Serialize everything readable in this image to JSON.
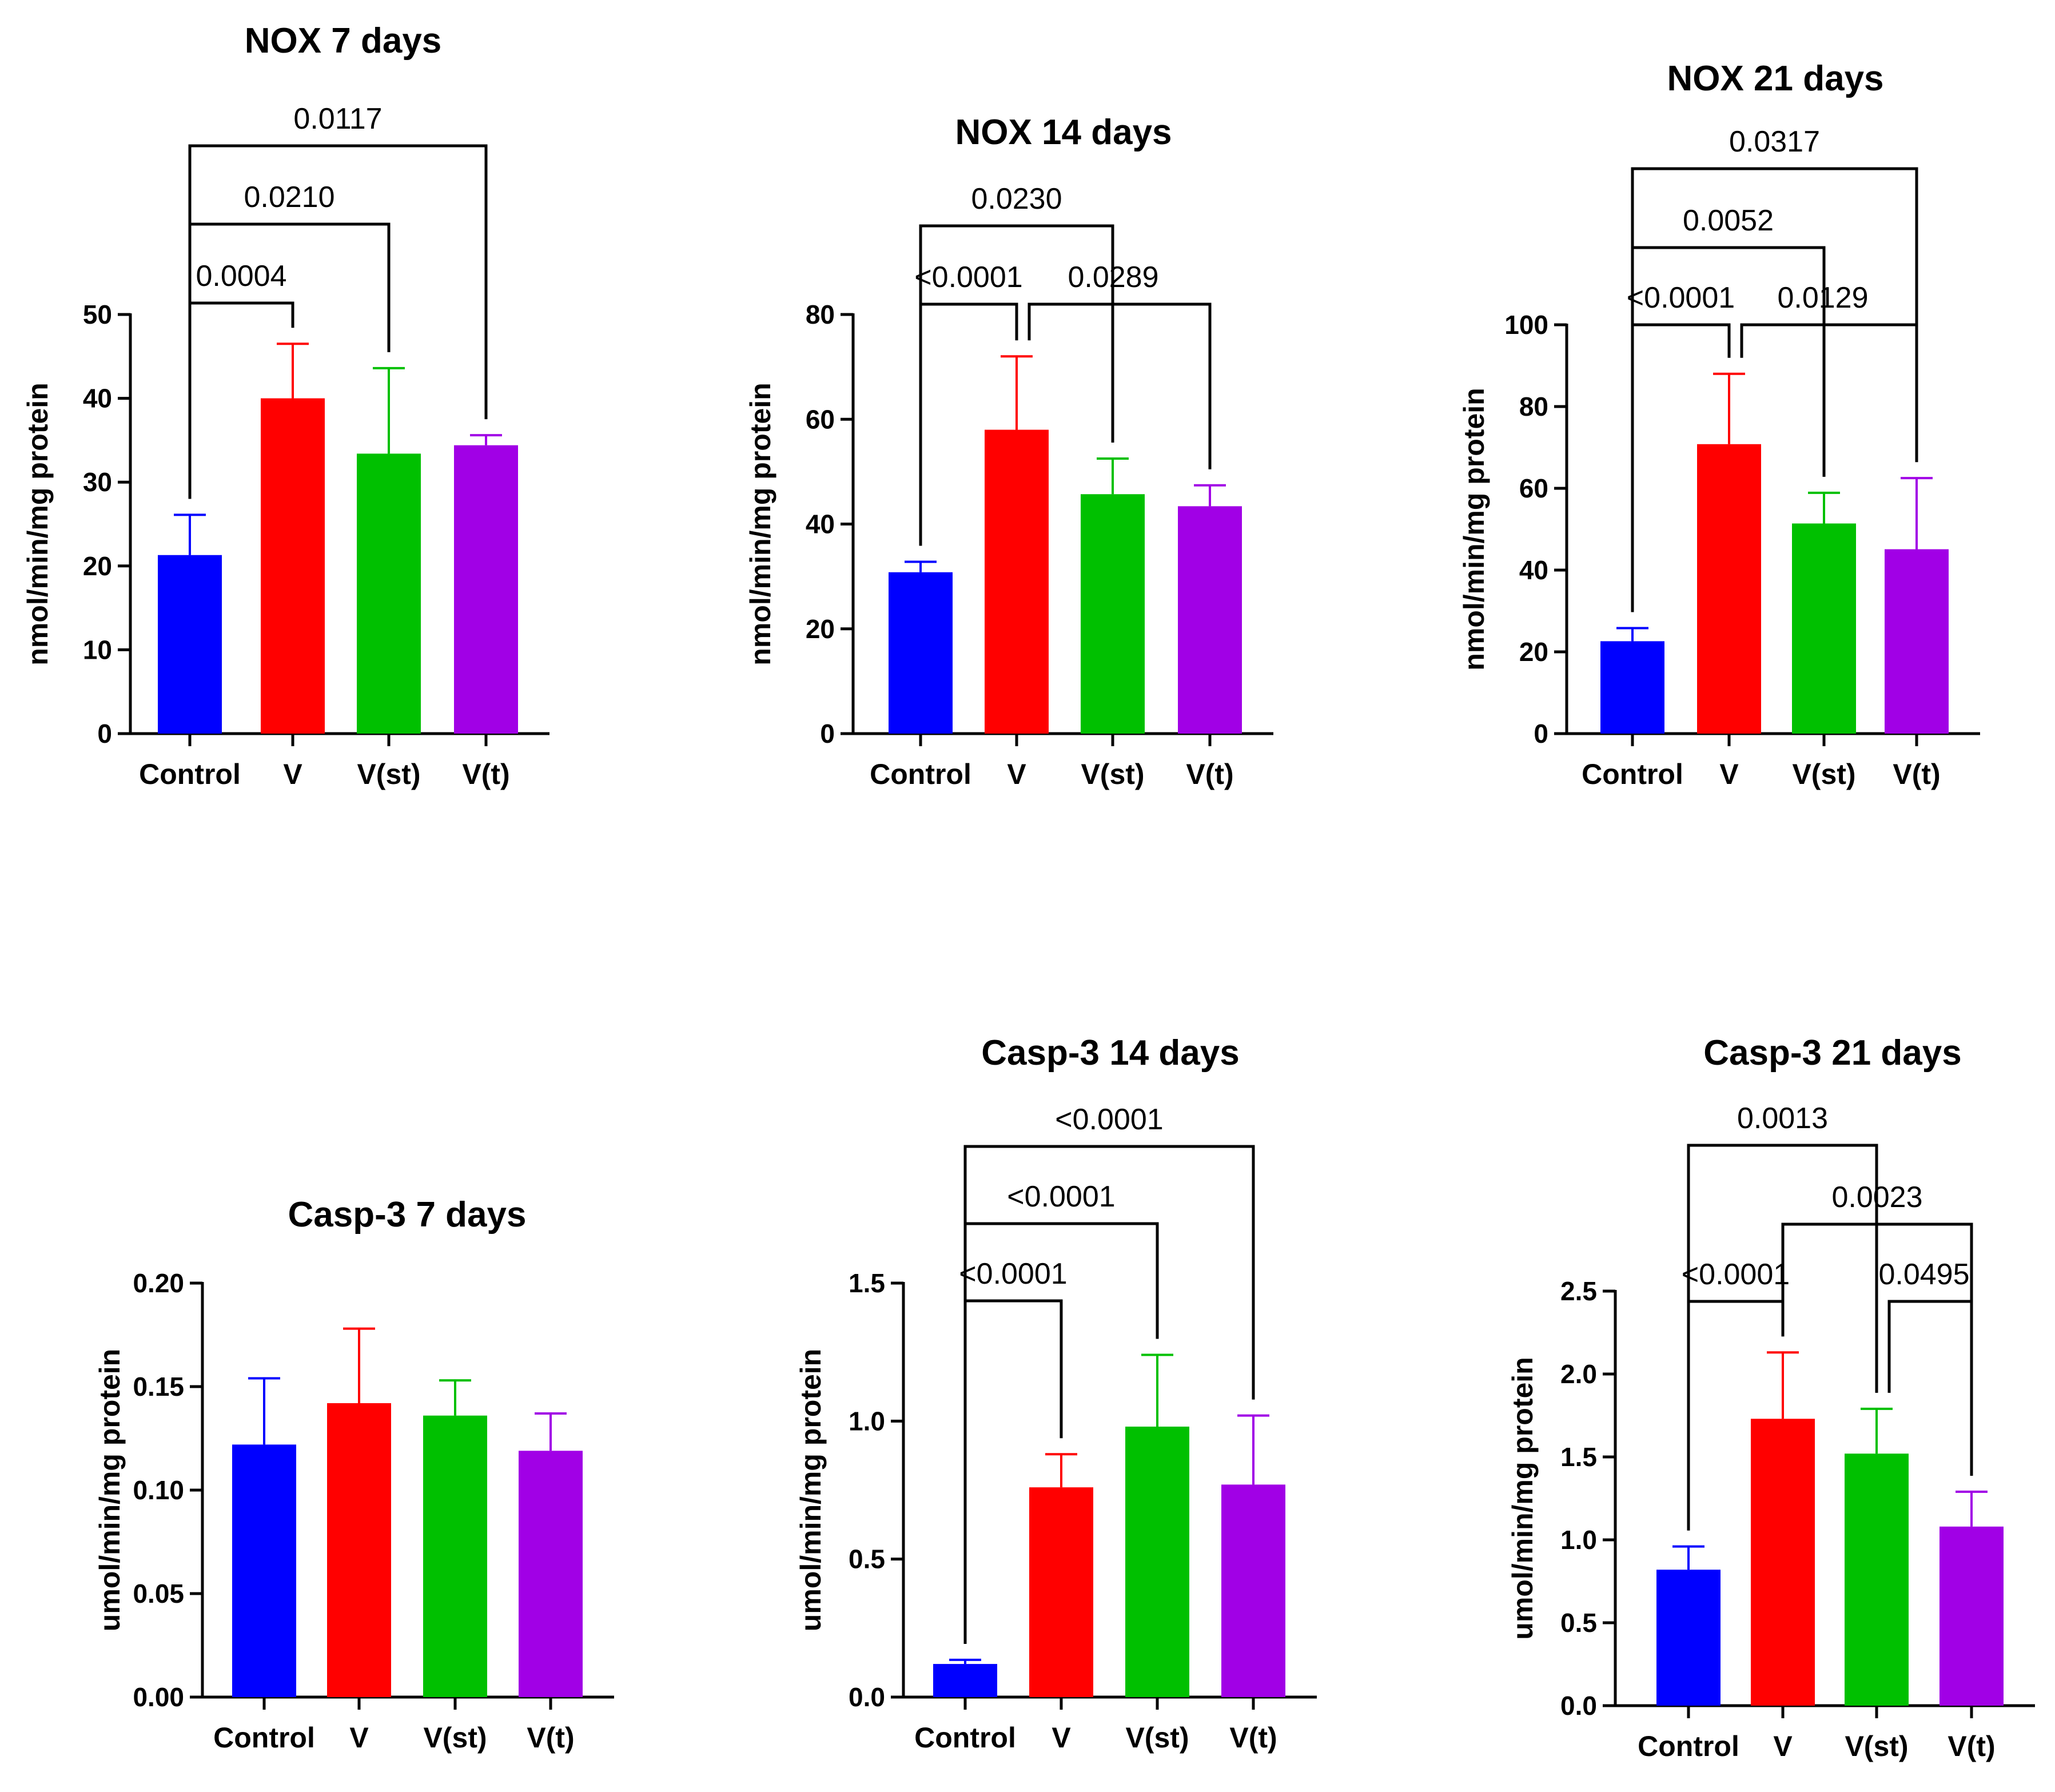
{
  "chart_data": [
    {
      "type": "bar",
      "title": "NOX 7 days",
      "ylabel": "nmol/min/mg protein",
      "categories": [
        "Control",
        "V",
        "V(st)",
        "V(t)"
      ],
      "values": [
        21.3,
        40.0,
        33.4,
        34.4
      ],
      "errors": [
        4.8,
        6.5,
        10.2,
        1.2
      ],
      "ylim": [
        0,
        50
      ],
      "yticks": [
        "0",
        "10",
        "20",
        "30",
        "40",
        "50"
      ],
      "comparisons": [
        {
          "from": "Control",
          "to": "V",
          "label": "0.0004"
        },
        {
          "from": "Control",
          "to": "V(st)",
          "label": "0.0210"
        },
        {
          "from": "Control",
          "to": "V(t)",
          "label": "0.0117"
        }
      ]
    },
    {
      "type": "bar",
      "title": "NOX 14 days",
      "ylabel": "nmol/min/mg protein",
      "categories": [
        "Control",
        "V",
        "V(st)",
        "V(t)"
      ],
      "values": [
        30.8,
        58.0,
        45.7,
        43.4
      ],
      "errors": [
        2.0,
        14.0,
        6.8,
        4.0
      ],
      "ylim": [
        0,
        80
      ],
      "yticks": [
        "0",
        "20",
        "40",
        "60",
        "80"
      ],
      "comparisons": [
        {
          "from": "Control",
          "to": "V",
          "label": "<0.0001"
        },
        {
          "from": "V",
          "to": "V(t)",
          "label": "0.0289"
        },
        {
          "from": "Control",
          "to": "V(st)",
          "label": "0.0230"
        }
      ]
    },
    {
      "type": "bar",
      "title": "NOX 21 days",
      "ylabel": "nmol/min/mg protein",
      "categories": [
        "Control",
        "V",
        "V(st)",
        "V(t)"
      ],
      "values": [
        22.6,
        70.8,
        51.4,
        45.1
      ],
      "errors": [
        3.2,
        17.2,
        7.5,
        17.4
      ],
      "ylim": [
        0,
        100
      ],
      "yticks": [
        "0",
        "20",
        "40",
        "60",
        "80",
        "100"
      ],
      "comparisons": [
        {
          "from": "Control",
          "to": "V",
          "label": "<0.0001"
        },
        {
          "from": "V",
          "to": "V(t)",
          "label": "0.0129"
        },
        {
          "from": "Control",
          "to": "V(st)",
          "label": "0.0052"
        },
        {
          "from": "Control",
          "to": "V(t)",
          "label": "0.0317"
        }
      ]
    },
    {
      "type": "bar",
      "title": "Casp-3 7 days",
      "ylabel": "umol/min/mg protein",
      "categories": [
        "Control",
        "V",
        "V(st)",
        "V(t)"
      ],
      "values": [
        0.122,
        0.142,
        0.136,
        0.119
      ],
      "errors": [
        0.032,
        0.036,
        0.017,
        0.018
      ],
      "ylim": [
        0,
        0.2
      ],
      "yticks": [
        "0.00",
        "0.05",
        "0.10",
        "0.15",
        "0.20"
      ],
      "comparisons": []
    },
    {
      "type": "bar",
      "title": "Casp-3 14 days",
      "ylabel": "umol/min/mg protein",
      "categories": [
        "Control",
        "V",
        "V(st)",
        "V(t)"
      ],
      "values": [
        0.12,
        0.76,
        0.98,
        0.77
      ],
      "errors": [
        0.015,
        0.12,
        0.26,
        0.25
      ],
      "ylim": [
        0,
        1.5
      ],
      "yticks": [
        "0.0",
        "0.5",
        "1.0",
        "1.5"
      ],
      "comparisons": [
        {
          "from": "Control",
          "to": "V",
          "label": "<0.0001"
        },
        {
          "from": "Control",
          "to": "V(st)",
          "label": "<0.0001"
        },
        {
          "from": "Control",
          "to": "V(t)",
          "label": "<0.0001"
        }
      ]
    },
    {
      "type": "bar",
      "title": "Casp-3 21 days",
      "ylabel": "umol/min/mg protein",
      "categories": [
        "Control",
        "V",
        "V(st)",
        "V(t)"
      ],
      "values": [
        0.82,
        1.73,
        1.52,
        1.08
      ],
      "errors": [
        0.14,
        0.4,
        0.27,
        0.21
      ],
      "ylim": [
        0,
        2.5
      ],
      "yticks": [
        "0.0",
        "0.5",
        "1.0",
        "1.5",
        "2.0",
        "2.5"
      ],
      "comparisons": [
        {
          "from": "Control",
          "to": "V",
          "label": "<0.0001"
        },
        {
          "from": "V(st)",
          "to": "V(t)",
          "label": "0.0495"
        },
        {
          "from": "V",
          "to": "V(t)",
          "label": "0.0023"
        },
        {
          "from": "Control",
          "to": "V(st)",
          "label": "0.0013"
        }
      ]
    }
  ],
  "colors": {
    "Control": "#0000ff",
    "V": "#ff0000",
    "V(st)": "#00c000",
    "V(t)": "#a100e6"
  }
}
